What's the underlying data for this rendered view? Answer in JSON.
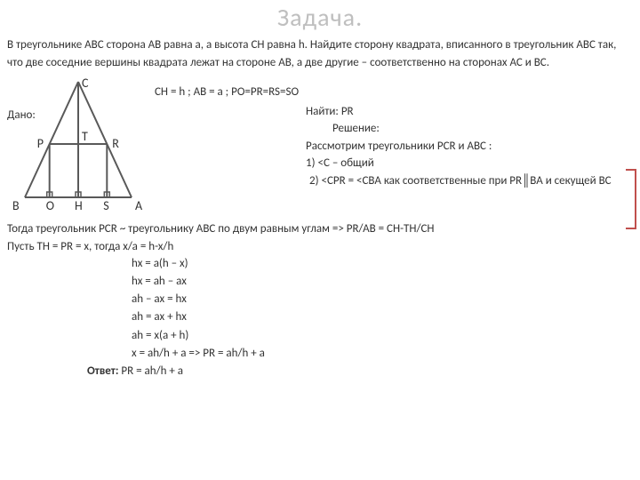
{
  "title": "Задача.",
  "problem": "В треугольнике ABC сторона AB равна a, а высота CH равна h. Найдите сторону квадрата, вписанного в треугольник ABC так, что две соседние вершины квадрата лежат на стороне AB, а две другие – соответственно на сторонах AC и BC.",
  "given_label": "Дано:",
  "given_values": "CH = h ;  AB = a ;  PO=PR=RS=SO",
  "find_label": "Найти: PR",
  "solution_label": "Решение:",
  "sol1": "Рассмотрим треугольники PCR и ABC :",
  "sol2": "1) <C – общий",
  "sol3": "2) <CPR = <CBA  как соответственные  при PR║BA  и секущей BC",
  "conclusion1": "Тогда треугольник PCR ~ треугольнику ABC по двум равным углам => PR/AB = CH-TH/CH",
  "conclusion2": "Пусть TH = PR = x, тогда x/a = h-x/h",
  "eq1": "hx = a(h – x)",
  "eq2": "hx = ah – ax",
  "eq3": "ah – ax = hx",
  "eq4": "ah = ax + hx",
  "eq5": "ah = x(a + h)",
  "eq6": "x = ah/h + a  => PR = ah/h + a",
  "answer_label": "Ответ:",
  "answer": "PR = ah/h + a",
  "diagram": {
    "labels": {
      "C": "C",
      "B": "B",
      "A": "A",
      "P": "P",
      "R": "R",
      "T": "T",
      "O": "O",
      "H": "H",
      "S": "S"
    },
    "stroke": "#595959",
    "width": 160,
    "height": 160
  }
}
